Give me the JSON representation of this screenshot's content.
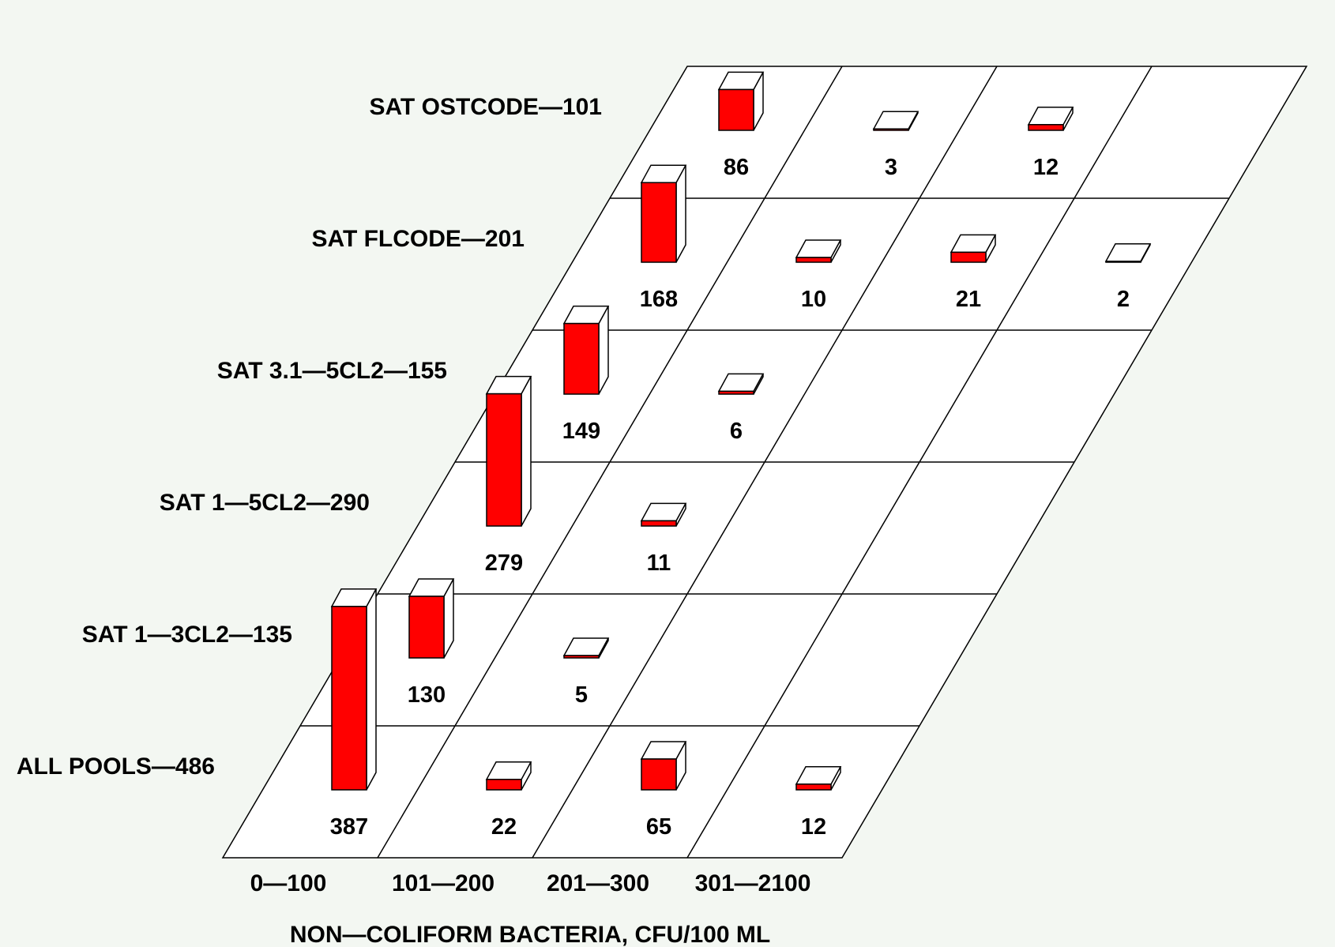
{
  "chart_data": {
    "type": "bar3d",
    "title": "",
    "xlabel": "NON—COLIFORM BACTERIA, CFU/100 ML",
    "categories": [
      "0—100",
      "101—200",
      "201—300",
      "301—2100"
    ],
    "rows": [
      {
        "label": "ALL POOLS—486",
        "values": [
          387,
          22,
          65,
          12
        ]
      },
      {
        "label": "SAT 1—3CL2—135",
        "values": [
          130,
          5,
          null,
          null
        ]
      },
      {
        "label": "SAT 1—5CL2—290",
        "values": [
          279,
          11,
          null,
          null
        ]
      },
      {
        "label": "SAT 3.1—5CL2—155",
        "values": [
          149,
          6,
          null,
          null
        ]
      },
      {
        "label": "SAT FLCODE—201",
        "values": [
          168,
          10,
          21,
          2
        ]
      },
      {
        "label": "SAT OSTCODE—101",
        "values": [
          86,
          3,
          12,
          null
        ]
      }
    ],
    "grid": true,
    "colors": {
      "bar": "#ff0000",
      "bar_edge": "#000000",
      "bar_side": "#ffffff",
      "floor": "#ffffff",
      "background": "#f3f7f2"
    }
  }
}
